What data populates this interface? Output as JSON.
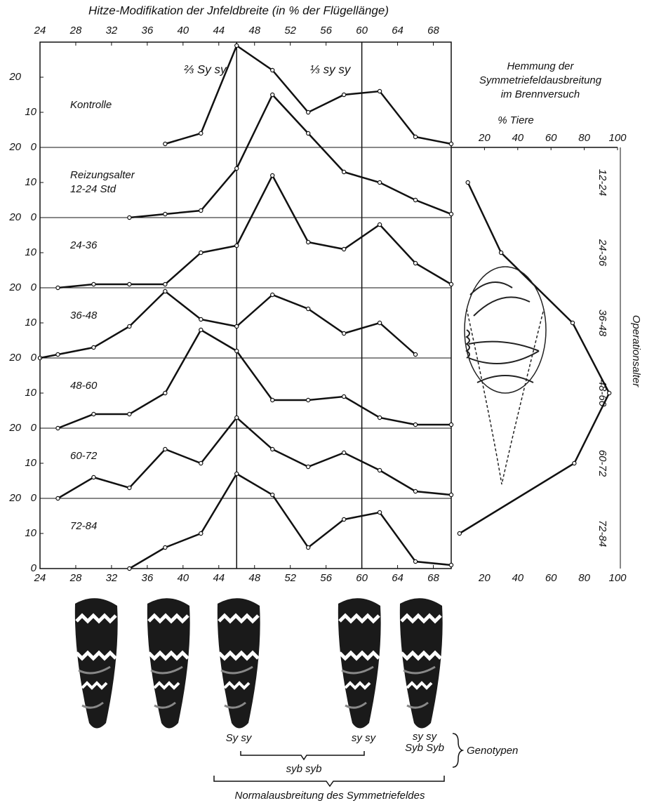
{
  "chart_data": [
    {
      "type": "line",
      "title": "Hitze-Modifikation der Jnfeldbreite (in % der Flügellänge)",
      "xlim": [
        24,
        70
      ],
      "xticks": [
        24,
        28,
        32,
        36,
        40,
        44,
        48,
        52,
        56,
        60,
        64,
        68
      ],
      "ylim": [
        0,
        20
      ],
      "yticks": [
        0,
        10,
        20
      ],
      "color": "#111111",
      "reference_lines": [
        {
          "x": 46,
          "label": "⅔ Sy sy"
        },
        {
          "x": 60,
          "label": "⅓ sy sy"
        }
      ],
      "panels": [
        {
          "label": [
            "Kontrolle"
          ],
          "x": [
            38,
            42,
            46,
            50,
            54,
            58,
            62,
            66,
            70
          ],
          "values": [
            1,
            4,
            29,
            22,
            10,
            15,
            16,
            3,
            1
          ]
        },
        {
          "label": [
            "Reizungsalter",
            "12-24 Std"
          ],
          "x": [
            34,
            38,
            42,
            46,
            50,
            54,
            58,
            62,
            66,
            70
          ],
          "values": [
            0,
            1,
            2,
            14,
            35,
            24,
            13,
            10,
            5,
            1
          ]
        },
        {
          "label": [
            "24-36"
          ],
          "x": [
            26,
            30,
            34,
            38,
            42,
            46,
            50,
            54,
            58,
            62,
            66,
            70
          ],
          "values": [
            0,
            1,
            1,
            1,
            10,
            12,
            32,
            13,
            11,
            18,
            7,
            1
          ]
        },
        {
          "label": [
            "36-48"
          ],
          "x": [
            24,
            26,
            30,
            34,
            38,
            42,
            46,
            50,
            54,
            58,
            62,
            66
          ],
          "values": [
            0,
            1,
            3,
            9,
            19,
            11,
            9,
            18,
            14,
            7,
            10,
            1
          ]
        },
        {
          "label": [
            "48-60"
          ],
          "x": [
            26,
            30,
            34,
            38,
            42,
            46,
            50,
            54,
            58,
            62,
            66,
            70
          ],
          "values": [
            0,
            4,
            4,
            10,
            28,
            22,
            8,
            8,
            9,
            3,
            1,
            1
          ]
        },
        {
          "label": [
            "60-72"
          ],
          "x": [
            26,
            30,
            34,
            38,
            42,
            46,
            50,
            54,
            58,
            62,
            66,
            70
          ],
          "values": [
            0,
            6,
            3,
            14,
            10,
            23,
            14,
            9,
            13,
            8,
            2,
            1
          ]
        },
        {
          "label": [
            "72-84"
          ],
          "x": [
            34,
            38,
            42,
            46,
            50,
            54,
            58,
            62,
            66,
            70
          ],
          "values": [
            0,
            6,
            10,
            27,
            21,
            6,
            14,
            16,
            2,
            1
          ]
        }
      ]
    },
    {
      "type": "line",
      "title": [
        "Hemmung der",
        "Symmetriefeldausbreitung",
        "im Brennversuch"
      ],
      "xlabel": "% Tiere",
      "ylabel": "Operationsalter",
      "xlim": [
        0,
        100
      ],
      "xticks": [
        20,
        40,
        60,
        80,
        100
      ],
      "categories": [
        "12-24",
        "24-36",
        "36-48",
        "48-60",
        "60-72",
        "72-84"
      ],
      "values": [
        10,
        30,
        73,
        95,
        74,
        5
      ],
      "color": "#111111"
    }
  ],
  "figure_labels": {
    "genotypes": [
      "Sy sy",
      "sy sy",
      "sy sy",
      "Syb Syb"
    ],
    "genotypes_caption": "Genotypen",
    "middle_brace": "syb syb",
    "bottom_brace": "Normalausbreitung des Symmetriefeldes"
  }
}
